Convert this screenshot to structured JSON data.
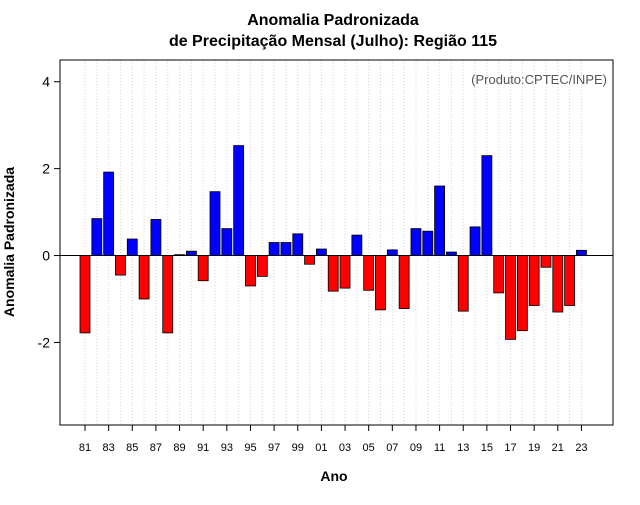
{
  "chart_data": {
    "type": "bar",
    "title": "Anomalia Padronizada",
    "subtitle": "de Precipitação Mensal (Julho): Região 115",
    "xlabel": "Ano",
    "ylabel": "Anomalia Padronizada",
    "annotation": "(Produto:CPTEC/INPE)",
    "ylim": [
      -3.9,
      4.5
    ],
    "yticks": [
      -2,
      0,
      2,
      4
    ],
    "ytick_labels": [
      "-2",
      "0",
      "2",
      "4"
    ],
    "categories": [
      "81",
      "82",
      "83",
      "84",
      "85",
      "86",
      "87",
      "88",
      "89",
      "90",
      "91",
      "92",
      "93",
      "94",
      "95",
      "96",
      "97",
      "98",
      "99",
      "00",
      "01",
      "02",
      "03",
      "04",
      "05",
      "06",
      "07",
      "08",
      "09",
      "10",
      "11",
      "12",
      "13",
      "14",
      "15",
      "16",
      "17",
      "18",
      "19",
      "20",
      "21",
      "22",
      "23"
    ],
    "values": [
      -1.78,
      0.85,
      1.92,
      -0.45,
      0.38,
      -1.0,
      0.83,
      -1.78,
      0.02,
      0.1,
      -0.58,
      1.47,
      0.62,
      2.53,
      -0.7,
      -0.48,
      0.3,
      0.3,
      0.5,
      -0.2,
      0.15,
      -0.82,
      -0.75,
      0.47,
      -0.8,
      -1.25,
      0.13,
      -1.22,
      0.62,
      0.56,
      1.6,
      0.08,
      -1.28,
      0.66,
      2.3,
      -0.86,
      -1.93,
      -1.73,
      -1.15,
      -0.27,
      -1.3,
      -1.15,
      0.12
    ],
    "xtick_labels": [
      "81",
      "83",
      "85",
      "87",
      "89",
      "91",
      "93",
      "95",
      "97",
      "99",
      "01",
      "03",
      "05",
      "07",
      "09",
      "11",
      "13",
      "15",
      "17",
      "19",
      "21",
      "23"
    ],
    "grid": true,
    "colors": {
      "positive": "#0000ff",
      "negative": "#ff0000",
      "outline": "#000000",
      "grid": "#d3d3d3",
      "zero_line": "#000000",
      "annotation": "#555555"
    }
  }
}
